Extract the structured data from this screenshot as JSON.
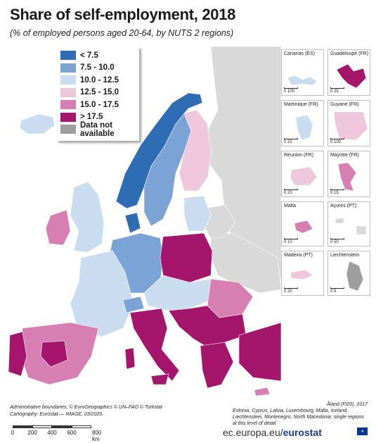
{
  "title": "Share of self-employment, 2018",
  "subtitle": "(% of employed persons aged 20-64, by NUTS 2 regions)",
  "legend": [
    {
      "label": "< 7.5",
      "color": "#2e6db4"
    },
    {
      "label": "7.5 - 10.0",
      "color": "#7ba3d6"
    },
    {
      "label": "10.0 - 12.5",
      "color": "#c9dcf0"
    },
    {
      "label": "12.5 - 15.0",
      "color": "#efc7dc"
    },
    {
      "label": "15.0 - 17.5",
      "color": "#d77fb2"
    },
    {
      "label": "> 17.5",
      "color": "#a4166b"
    },
    {
      "label": "Data not available",
      "color": "#9e9e9e"
    }
  ],
  "insets": [
    {
      "label": "Canarias (ES)",
      "scale": "0     100"
    },
    {
      "label": "Guadeloupe (FR)",
      "scale": "0   25"
    },
    {
      "label": "Martinique (FR)",
      "scale": "0   20"
    },
    {
      "label": "Guyane (FR)",
      "scale": "0       100"
    },
    {
      "label": "Réunion (FR)",
      "scale": "0   20"
    },
    {
      "label": "Mayotte (FR)",
      "scale": "0   15"
    },
    {
      "label": "Malta",
      "scale": "0   10"
    },
    {
      "label": "Açores (PT)",
      "scale": "0     50"
    },
    {
      "label": "Madeira (PT)",
      "scale": "0   20"
    },
    {
      "label": "Liechtenstein",
      "scale": "0    5"
    }
  ],
  "footer": {
    "boundaries": "Administrative boundaries: © EuroGeographics © UN–FAO © Turkstat",
    "cartography": "Cartography: Eurostat — IMAGE, 03/2020",
    "aland": "Åland (FI20), 2017",
    "note": "Estonia, Cyprus, Latvia, Luxembourg, Malta, Iceland, Liechtenstein, Montenegro, North Macedonia: single regions at this level of detail"
  },
  "scalebar": {
    "ticks": [
      "0",
      "200",
      "400",
      "600",
      "800 km"
    ]
  },
  "site": {
    "prefix": "ec.europa.eu/",
    "brand": "eurostat"
  }
}
